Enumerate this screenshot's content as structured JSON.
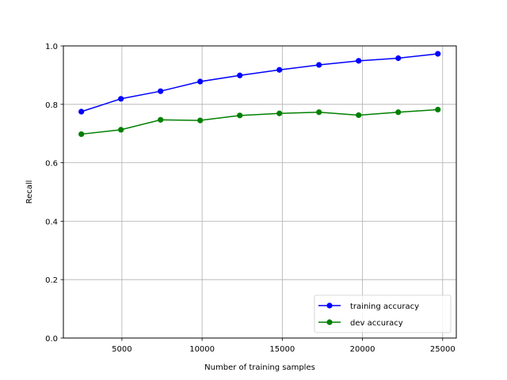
{
  "chart_data": {
    "type": "line",
    "title": "",
    "xlabel": "Number of training samples",
    "ylabel": "Recall",
    "xlim": [
      1350,
      25850
    ],
    "ylim": [
      0.0,
      1.0
    ],
    "xticks": [
      5000,
      10000,
      15000,
      20000,
      25000
    ],
    "xtick_labels": [
      "5000",
      "10000",
      "15000",
      "20000",
      "25000"
    ],
    "yticks": [
      0.0,
      0.2,
      0.4,
      0.6,
      0.8,
      1.0
    ],
    "ytick_labels": [
      "0.0",
      "0.2",
      "0.4",
      "0.6",
      "0.8",
      "1.0"
    ],
    "grid": true,
    "legend_position": "lower-right",
    "x": [
      2470,
      4940,
      7410,
      9880,
      12350,
      14820,
      17290,
      19760,
      22230,
      24700
    ],
    "series": [
      {
        "name": "training accuracy",
        "color": "#0000ff",
        "values": [
          0.775,
          0.819,
          0.845,
          0.878,
          0.899,
          0.918,
          0.935,
          0.949,
          0.958,
          0.973
        ]
      },
      {
        "name": "dev accuracy",
        "color": "#008000",
        "values": [
          0.698,
          0.713,
          0.747,
          0.745,
          0.762,
          0.769,
          0.773,
          0.763,
          0.773,
          0.782
        ]
      }
    ]
  }
}
